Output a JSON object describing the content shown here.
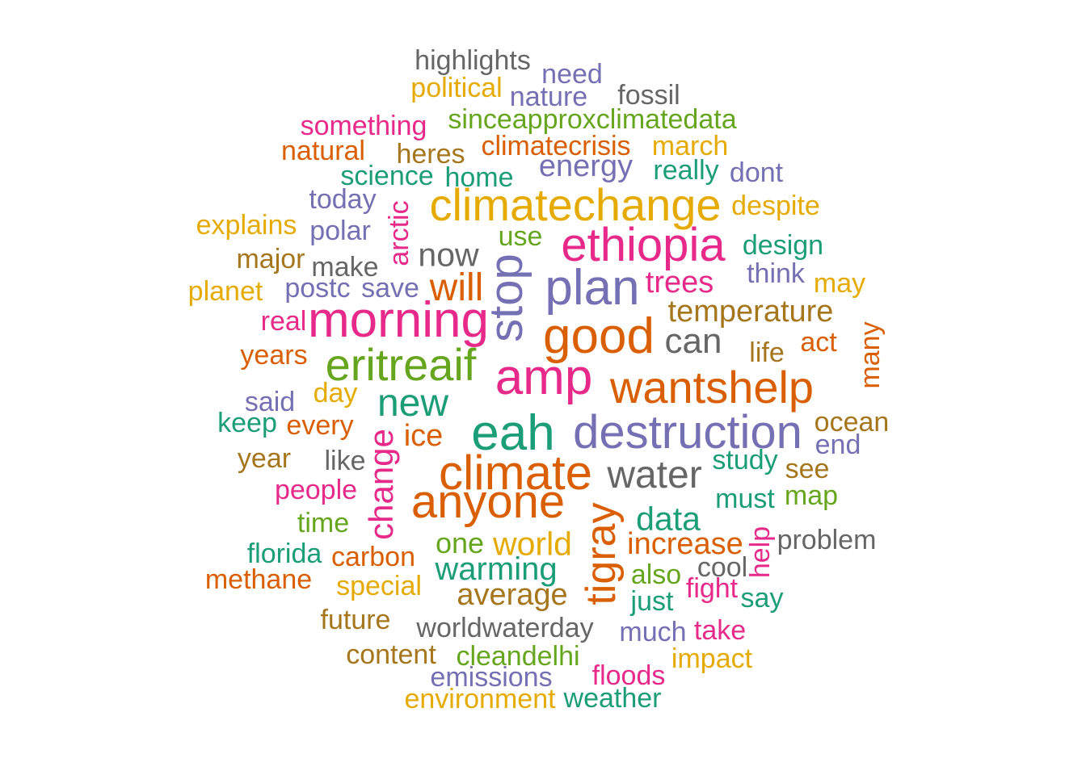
{
  "palette": {
    "teal": "#1b9e77",
    "orange": "#d95f02",
    "purple": "#7570b3",
    "pink": "#e7298a",
    "green": "#66a61e",
    "yellow": "#e6ab02",
    "brown": "#a6761d",
    "gray": "#666666"
  },
  "words": [
    {
      "text": "highlights",
      "color": "gray"
    },
    {
      "text": "need",
      "color": "purple"
    },
    {
      "text": "political",
      "color": "yellow"
    },
    {
      "text": "nature",
      "color": "purple"
    },
    {
      "text": "fossil",
      "color": "gray"
    },
    {
      "text": "something",
      "color": "pink"
    },
    {
      "text": "sinceapproxclimatedata",
      "color": "green"
    },
    {
      "text": "natural",
      "color": "orange"
    },
    {
      "text": "heres",
      "color": "brown"
    },
    {
      "text": "climatecrisis",
      "color": "orange"
    },
    {
      "text": "march",
      "color": "yellow"
    },
    {
      "text": "science",
      "color": "teal"
    },
    {
      "text": "home",
      "color": "teal"
    },
    {
      "text": "energy",
      "color": "purple"
    },
    {
      "text": "really",
      "color": "teal"
    },
    {
      "text": "dont",
      "color": "purple"
    },
    {
      "text": "today",
      "color": "purple"
    },
    {
      "text": "climatechange",
      "color": "yellow"
    },
    {
      "text": "despite",
      "color": "yellow"
    },
    {
      "text": "explains",
      "color": "yellow"
    },
    {
      "text": "arctic",
      "color": "pink"
    },
    {
      "text": "polar",
      "color": "purple"
    },
    {
      "text": "use",
      "color": "green"
    },
    {
      "text": "ethiopia",
      "color": "pink"
    },
    {
      "text": "design",
      "color": "teal"
    },
    {
      "text": "major",
      "color": "brown"
    },
    {
      "text": "now",
      "color": "gray"
    },
    {
      "text": "make",
      "color": "gray"
    },
    {
      "text": "stop",
      "color": "purple"
    },
    {
      "text": "think",
      "color": "purple"
    },
    {
      "text": "planet",
      "color": "yellow"
    },
    {
      "text": "postc",
      "color": "purple"
    },
    {
      "text": "save",
      "color": "purple"
    },
    {
      "text": "will",
      "color": "orange"
    },
    {
      "text": "plan",
      "color": "purple"
    },
    {
      "text": "trees",
      "color": "pink"
    },
    {
      "text": "may",
      "color": "yellow"
    },
    {
      "text": "real",
      "color": "pink"
    },
    {
      "text": "morning",
      "color": "pink"
    },
    {
      "text": "temperature",
      "color": "brown"
    },
    {
      "text": "good",
      "color": "orange"
    },
    {
      "text": "can",
      "color": "gray"
    },
    {
      "text": "years",
      "color": "orange"
    },
    {
      "text": "act",
      "color": "orange"
    },
    {
      "text": "life",
      "color": "brown"
    },
    {
      "text": "many",
      "color": "orange"
    },
    {
      "text": "eritreaif",
      "color": "green"
    },
    {
      "text": "amp",
      "color": "pink"
    },
    {
      "text": "wantshelp",
      "color": "orange"
    },
    {
      "text": "day",
      "color": "yellow"
    },
    {
      "text": "said",
      "color": "purple"
    },
    {
      "text": "new",
      "color": "teal"
    },
    {
      "text": "keep",
      "color": "teal"
    },
    {
      "text": "every",
      "color": "orange"
    },
    {
      "text": "ocean",
      "color": "brown"
    },
    {
      "text": "eah",
      "color": "teal"
    },
    {
      "text": "destruction",
      "color": "purple"
    },
    {
      "text": "ice",
      "color": "orange"
    },
    {
      "text": "end",
      "color": "purple"
    },
    {
      "text": "change",
      "color": "pink"
    },
    {
      "text": "year",
      "color": "brown"
    },
    {
      "text": "like",
      "color": "gray"
    },
    {
      "text": "study",
      "color": "teal"
    },
    {
      "text": "climate",
      "color": "orange"
    },
    {
      "text": "water",
      "color": "gray"
    },
    {
      "text": "see",
      "color": "brown"
    },
    {
      "text": "people",
      "color": "pink"
    },
    {
      "text": "anyone",
      "color": "orange"
    },
    {
      "text": "must",
      "color": "teal"
    },
    {
      "text": "map",
      "color": "green"
    },
    {
      "text": "tigray",
      "color": "orange"
    },
    {
      "text": "data",
      "color": "teal"
    },
    {
      "text": "time",
      "color": "green"
    },
    {
      "text": "one",
      "color": "green"
    },
    {
      "text": "world",
      "color": "yellow"
    },
    {
      "text": "increase",
      "color": "orange"
    },
    {
      "text": "help",
      "color": "pink"
    },
    {
      "text": "problem",
      "color": "gray"
    },
    {
      "text": "florida",
      "color": "teal"
    },
    {
      "text": "carbon",
      "color": "orange"
    },
    {
      "text": "warming",
      "color": "teal"
    },
    {
      "text": "cool",
      "color": "gray"
    },
    {
      "text": "methane",
      "color": "orange"
    },
    {
      "text": "also",
      "color": "green"
    },
    {
      "text": "special",
      "color": "yellow"
    },
    {
      "text": "fight",
      "color": "pink"
    },
    {
      "text": "average",
      "color": "brown"
    },
    {
      "text": "just",
      "color": "teal"
    },
    {
      "text": "say",
      "color": "teal"
    },
    {
      "text": "future",
      "color": "brown"
    },
    {
      "text": "worldwaterday",
      "color": "gray"
    },
    {
      "text": "much",
      "color": "purple"
    },
    {
      "text": "take",
      "color": "pink"
    },
    {
      "text": "content",
      "color": "brown"
    },
    {
      "text": "cleandelhi",
      "color": "green"
    },
    {
      "text": "impact",
      "color": "yellow"
    },
    {
      "text": "emissions",
      "color": "purple"
    },
    {
      "text": "floods",
      "color": "pink"
    },
    {
      "text": "environment",
      "color": "yellow"
    },
    {
      "text": "weather",
      "color": "teal"
    }
  ]
}
